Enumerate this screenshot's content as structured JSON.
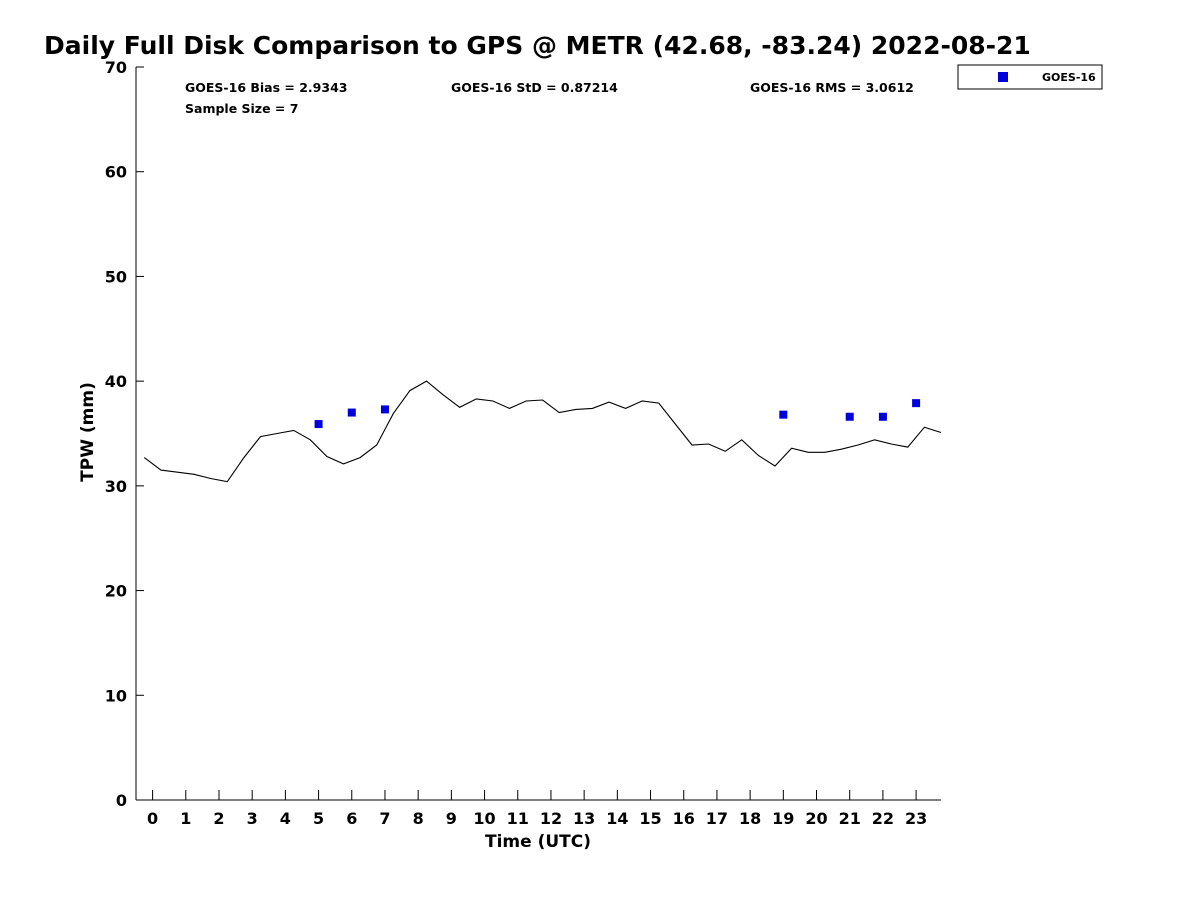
{
  "chart_data": {
    "type": "line",
    "title": "Daily Full Disk Comparison to GPS @ METR (42.68, -83.24) 2022-08-21",
    "xlabel": "Time (UTC)",
    "ylabel": "TPW (mm)",
    "xlim": [
      -0.5,
      23.75
    ],
    "ylim": [
      0,
      70
    ],
    "x_ticks": [
      0,
      1,
      2,
      3,
      4,
      5,
      6,
      7,
      8,
      9,
      10,
      11,
      12,
      13,
      14,
      15,
      16,
      17,
      18,
      19,
      20,
      21,
      22,
      23
    ],
    "y_ticks": [
      0,
      10,
      20,
      30,
      40,
      50,
      60,
      70
    ],
    "grid": false,
    "legend_position": "outside top-right",
    "stats": {
      "bias": "GOES-16 Bias = 2.9343",
      "std": "GOES-16 StD = 0.87214",
      "rms": "GOES-16 RMS = 3.0612",
      "sample": "Sample Size = 7"
    },
    "series": [
      {
        "kind": "line",
        "color": "#000000",
        "x": [
          -0.25,
          0.25,
          0.75,
          1.25,
          1.75,
          2.25,
          2.75,
          3.25,
          3.75,
          4.25,
          4.75,
          5.25,
          5.75,
          6.25,
          6.75,
          7.25,
          7.75,
          8.25,
          8.75,
          9.25,
          9.75,
          10.25,
          10.75,
          11.25,
          11.75,
          12.25,
          12.75,
          13.25,
          13.75,
          14.25,
          14.75,
          15.25,
          15.75,
          16.25,
          16.75,
          17.25,
          17.75,
          18.25,
          18.75,
          19.25,
          19.75,
          20.25,
          20.75,
          21.25,
          21.75,
          22.25,
          22.75,
          23.25,
          23.75
        ],
        "y": [
          32.7,
          31.5,
          31.3,
          31.1,
          30.7,
          30.4,
          32.7,
          34.7,
          35.0,
          35.3,
          34.4,
          32.8,
          32.1,
          32.7,
          33.9,
          36.9,
          39.1,
          40.0,
          38.7,
          37.5,
          38.3,
          38.1,
          37.4,
          38.1,
          38.2,
          37.0,
          37.3,
          37.4,
          38.0,
          37.4,
          38.1,
          37.9,
          35.9,
          33.9,
          34.0,
          33.3,
          34.4,
          32.9,
          31.9,
          33.6,
          33.2,
          33.2,
          33.5,
          33.9,
          34.4,
          34.0,
          33.7,
          35.6,
          35.1
        ]
      },
      {
        "kind": "scatter",
        "name": "GOES-16",
        "color": "#0000dd",
        "x": [
          5,
          6,
          7,
          19,
          21,
          22,
          23
        ],
        "y": [
          35.9,
          37.0,
          37.3,
          36.8,
          36.6,
          36.6,
          37.9
        ]
      }
    ]
  }
}
